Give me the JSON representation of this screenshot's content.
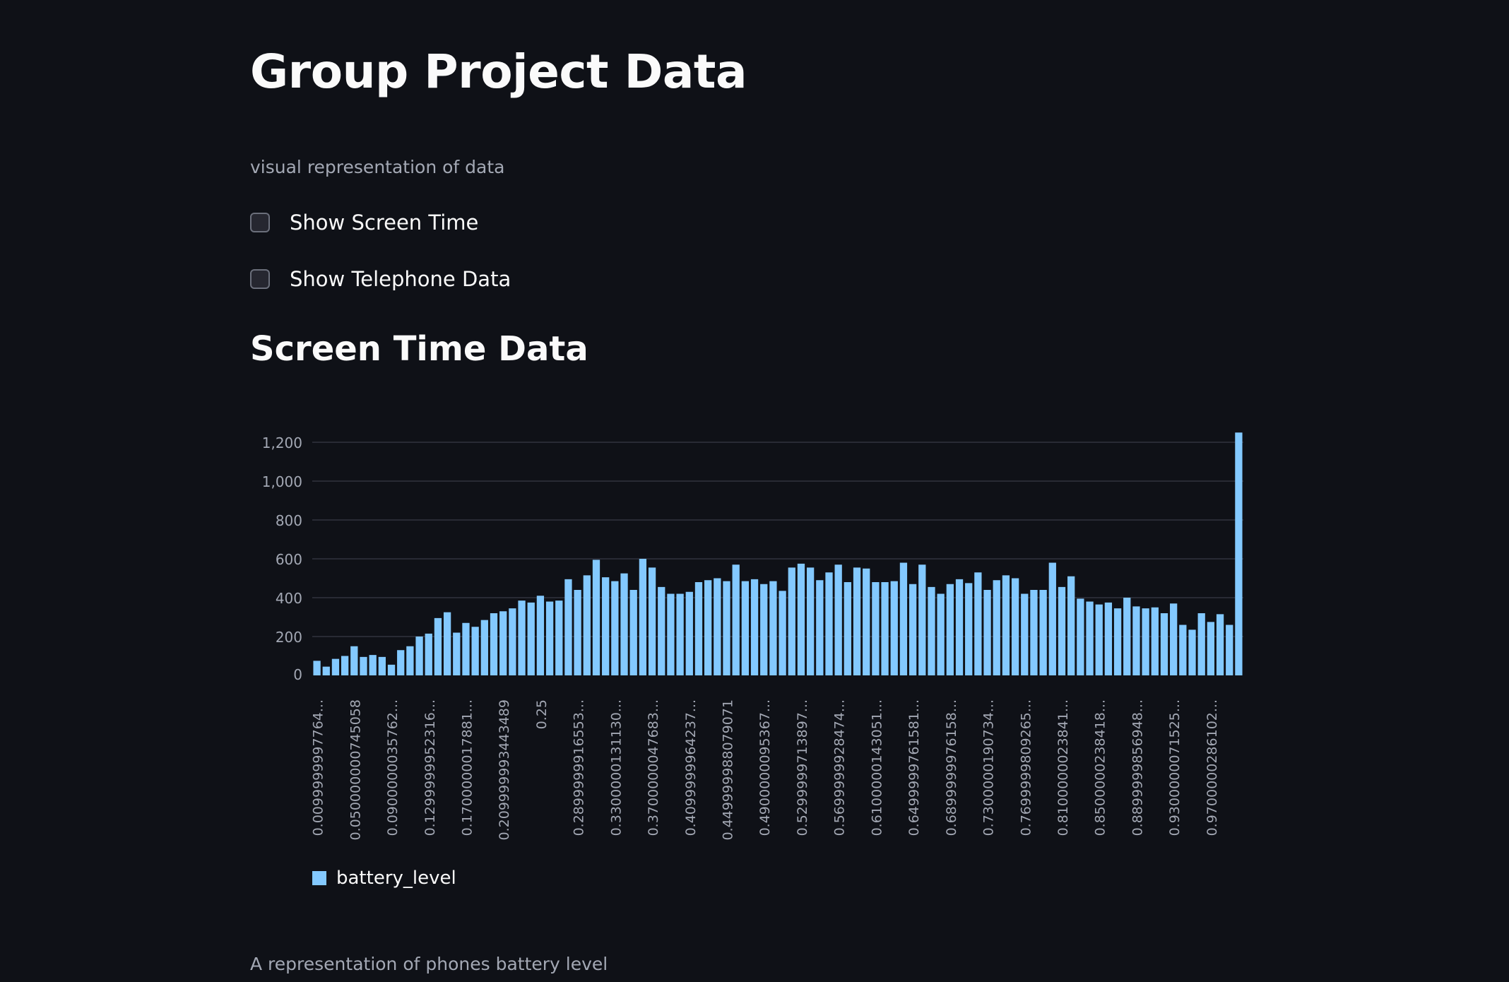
{
  "page": {
    "title": "Group Project Data",
    "caption": "visual representation of data",
    "checkboxes": [
      {
        "label": "Show Screen Time",
        "checked": false
      },
      {
        "label": "Show Telephone Data",
        "checked": false
      }
    ],
    "subheader": "Screen Time Data",
    "bottom_caption": "A representation of phones battery level"
  },
  "colors": {
    "background": "#0f1117",
    "bar": "#83c9ff",
    "grid": "#31333f",
    "axis_text": "#a3a8b4"
  },
  "chart_data": {
    "type": "bar",
    "ylim": [
      0,
      1300
    ],
    "yticks": [
      0,
      200,
      400,
      600,
      800,
      1000,
      1200
    ],
    "ytick_labels": [
      "0",
      "200",
      "400",
      "600",
      "800",
      "1,000",
      "1,200"
    ],
    "grid": true,
    "legend": {
      "position": "bottom-left",
      "entries": [
        "battery_level"
      ]
    },
    "series": [
      {
        "name": "battery_level"
      }
    ],
    "x_tick_labels": [
      "0.0099999997764...",
      "0.050000000745058",
      "0.0900000035762...",
      "0.1299999952316...",
      "0.1700000017881...",
      "0.209999993443489",
      "0.25",
      "0.2899999916553...",
      "0.3300000131130...",
      "0.3700000047683...",
      "0.4099999964237...",
      "0.449999988079071",
      "0.4900000095367...",
      "0.5299999713897...",
      "0.5699999928474...",
      "0.6100000143051...",
      "0.6499999761581...",
      "0.6899999976158...",
      "0.7300000190734...",
      "0.7699999809265...",
      "0.8100000023841...",
      "0.8500000238418...",
      "0.8899999856948...",
      "0.9300000071525...",
      "0.9700000286102..."
    ],
    "values": [
      75,
      45,
      85,
      100,
      150,
      95,
      105,
      95,
      55,
      130,
      150,
      200,
      215,
      295,
      325,
      220,
      270,
      250,
      285,
      320,
      330,
      345,
      385,
      375,
      410,
      380,
      385,
      495,
      440,
      515,
      595,
      505,
      485,
      525,
      440,
      600,
      555,
      455,
      420,
      420,
      430,
      480,
      490,
      500,
      485,
      570,
      485,
      495,
      470,
      485,
      435,
      555,
      575,
      555,
      490,
      530,
      570,
      480,
      555,
      550,
      480,
      480,
      485,
      580,
      470,
      570,
      455,
      420,
      470,
      495,
      475,
      530,
      440,
      490,
      515,
      500,
      420,
      440,
      440,
      580,
      455,
      510,
      395,
      380,
      365,
      375,
      345,
      400,
      355,
      345,
      350,
      320,
      370,
      260,
      235,
      320,
      275,
      315,
      260,
      1250
    ]
  }
}
